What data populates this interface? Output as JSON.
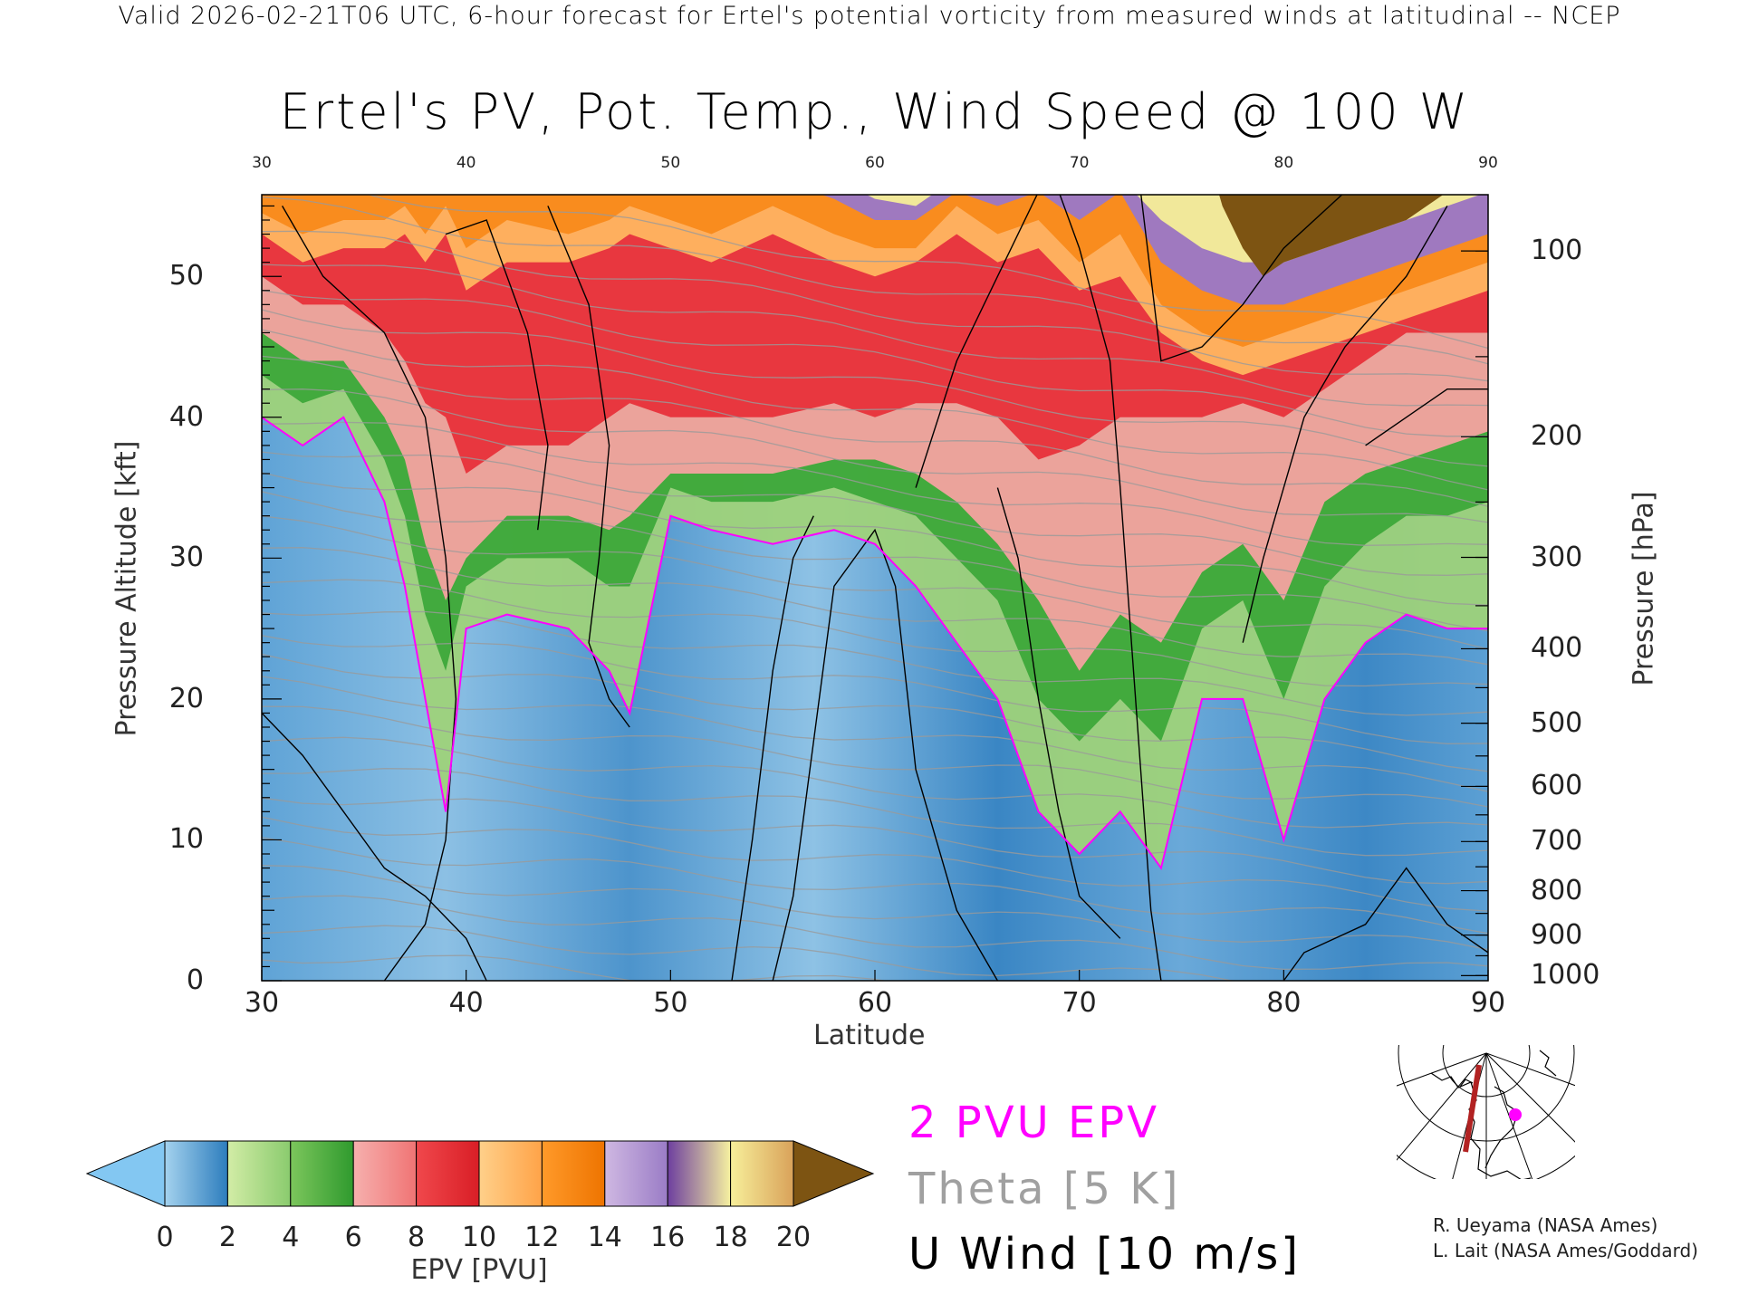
{
  "header": "Valid 2026-02-21T06 UTC, 6-hour forecast for Ertel's potential vorticity from measured winds at latitudinal -- NCEP",
  "chart_data": {
    "type": "heatmap",
    "title": "Ertel's PV, Pot. Temp., Wind Speed @ 100 W",
    "xlabel": "Latitude",
    "ylabel": "Pressure Altitude [kft]",
    "y2label": "Pressure [hPa]",
    "xlim": [
      30,
      90
    ],
    "ylim": [
      0,
      55.8
    ],
    "xticks": [
      30,
      40,
      50,
      60,
      70,
      80,
      90
    ],
    "top_xticks": [
      "30",
      "40",
      "50",
      "60",
      "70",
      "80",
      "90"
    ],
    "yticks": [
      0,
      10,
      20,
      30,
      40,
      50
    ],
    "pressure_ticks": [
      100,
      200,
      300,
      400,
      500,
      600,
      700,
      800,
      900,
      1000
    ],
    "lats": [
      30,
      32,
      34,
      36,
      37,
      38,
      39,
      40,
      42,
      45,
      47,
      48,
      50,
      52,
      55,
      58,
      60,
      62,
      64,
      66,
      68,
      70,
      72,
      74,
      76,
      78,
      80,
      82,
      84,
      86,
      88,
      90
    ],
    "pv_boundaries_kft": [
      {
        "level": 2,
        "color": "#9ed27a",
        "kft": [
          40,
          38,
          40,
          34,
          28,
          20,
          12,
          25,
          26,
          25,
          22,
          19,
          33,
          32,
          31,
          32,
          31,
          28,
          24,
          20,
          12,
          9,
          12,
          8,
          20,
          20,
          10,
          20,
          24,
          26,
          25,
          25
        ]
      },
      {
        "level": 5,
        "color": "#3da83a",
        "kft": [
          43,
          41,
          42,
          37,
          33,
          26,
          22,
          28,
          30,
          30,
          28,
          28,
          35,
          34,
          34,
          35,
          34,
          33,
          30,
          27,
          20,
          17,
          20,
          17,
          25,
          27,
          20,
          28,
          31,
          33,
          33,
          34
        ]
      },
      {
        "level": 6,
        "color": "#f4a2a0",
        "kft": [
          46,
          44,
          44,
          40,
          37,
          31,
          27,
          30,
          33,
          33,
          32,
          33,
          36,
          36,
          36,
          37,
          37,
          36,
          34,
          31,
          27,
          22,
          26,
          24,
          29,
          31,
          27,
          34,
          36,
          37,
          38,
          39
        ]
      },
      {
        "level": 8,
        "color": "#e8323a",
        "kft": [
          50,
          48,
          48,
          46,
          44,
          41,
          40,
          36,
          38,
          38,
          40,
          41,
          40,
          40,
          40,
          41,
          40,
          41,
          41,
          40,
          37,
          38,
          40,
          40,
          40,
          41,
          40,
          42,
          44,
          46,
          46,
          46
        ]
      },
      {
        "level": 11,
        "color": "#ffb560",
        "kft": [
          53,
          51,
          52,
          52,
          53,
          51,
          53,
          49,
          51,
          51,
          52,
          53,
          52,
          51,
          53,
          51,
          50,
          51,
          53,
          51,
          52,
          49,
          50,
          46,
          44,
          43,
          44,
          45,
          46,
          47,
          48,
          49
        ]
      },
      {
        "level": 13,
        "color": "#f98a1a",
        "kft": [
          54.5,
          53,
          54,
          54,
          55,
          53,
          55,
          52,
          54,
          53,
          54,
          55,
          54,
          53,
          55,
          53,
          52,
          52,
          55,
          53,
          54,
          51,
          53,
          48,
          46,
          45,
          46,
          47,
          48,
          49,
          50,
          51
        ]
      },
      {
        "level": 15,
        "color": "#9a78c8",
        "kft": [
          57,
          56,
          57,
          56,
          57,
          57,
          57,
          57,
          57,
          57,
          57,
          57,
          57,
          57,
          57,
          55.5,
          54,
          54,
          56,
          55,
          56,
          54,
          56,
          51,
          49,
          48,
          48,
          49,
          50,
          51,
          52,
          53
        ]
      },
      {
        "level": 18,
        "color": "#f6ee98",
        "kft": [
          60,
          60,
          60,
          60,
          60,
          60,
          60,
          60,
          60,
          60,
          60,
          60,
          60,
          60,
          60,
          57,
          55.5,
          55,
          57,
          56,
          57,
          56,
          57,
          54,
          52,
          51,
          51,
          52,
          53,
          54,
          55,
          56
        ]
      }
    ],
    "pv_over_20_region": {
      "lats": [
        76,
        77,
        78,
        79,
        80,
        82,
        84,
        86,
        88,
        90
      ],
      "kft_bottom": [
        60,
        55,
        52,
        50,
        51,
        52,
        53,
        54,
        56,
        60
      ]
    },
    "tropopause_2pvu_kft": [
      40,
      38,
      40,
      34,
      28,
      20,
      12,
      25,
      26,
      25,
      22,
      19,
      33,
      32,
      31,
      32,
      31,
      28,
      24,
      20,
      12,
      9,
      12,
      8,
      20,
      20,
      10,
      20,
      24,
      26,
      25,
      25
    ],
    "colorbar": {
      "label": "EPV [PVU]",
      "ticks": [
        "0",
        "2",
        "4",
        "6",
        "8",
        "10",
        "12",
        "14",
        "16",
        "18",
        "20"
      ],
      "segments": [
        [
          "#a4d2ee",
          "#2d7dbd"
        ],
        [
          "#d2eca6",
          "#8acb6e"
        ],
        [
          "#7cc65c",
          "#2f9a2e"
        ],
        [
          "#f6b0ae",
          "#f07474"
        ],
        [
          "#f0484c",
          "#d91e26"
        ],
        [
          "#ffd08a",
          "#ffa348"
        ],
        [
          "#ff9a2a",
          "#ee7400"
        ],
        [
          "#cfb8e2",
          "#9a7cc6"
        ],
        [
          "#6e3f9f",
          "#f6f1a0"
        ],
        [
          "#f7ef9a",
          "#d9a25a"
        ]
      ],
      "under_color": "#83c7f2",
      "over_color": "#7d5412"
    },
    "legend": [
      {
        "label": "2 PVU EPV",
        "color": "#ff00ff"
      },
      {
        "label": "Theta [5 K]",
        "color": "#a0a0a0"
      },
      {
        "label": "U Wind [10 m/s]",
        "color": "#000000"
      }
    ]
  },
  "credits": [
    "R. Ueyama (NASA Ames)",
    "L. Lait (NASA Ames/Goddard)"
  ]
}
